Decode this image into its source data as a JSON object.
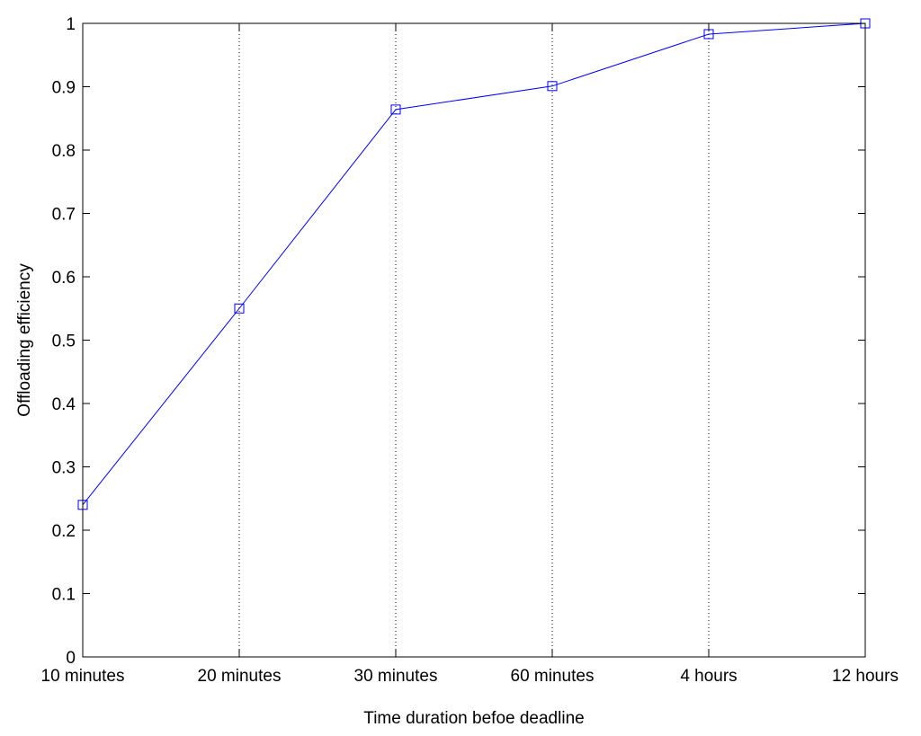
{
  "chart_data": {
    "type": "line",
    "title": "",
    "xlabel": "Time duration befoe deadline",
    "ylabel": "Offloading efficiency",
    "categories": [
      "10 minutes",
      "20 minutes",
      "30 minutes",
      "60 minutes",
      "4 hours",
      "12 hours"
    ],
    "series": [
      {
        "values": [
          0.24,
          0.55,
          0.864,
          0.901,
          0.983,
          1.0
        ],
        "color": "#0000ff",
        "marker": "square"
      }
    ],
    "ylim": [
      0,
      1
    ],
    "yticks": [
      "0",
      "0.1",
      "0.2",
      "0.3",
      "0.4",
      "0.5",
      "0.6",
      "0.7",
      "0.8",
      "0.9",
      "1"
    ],
    "grid": "x-dotted"
  }
}
